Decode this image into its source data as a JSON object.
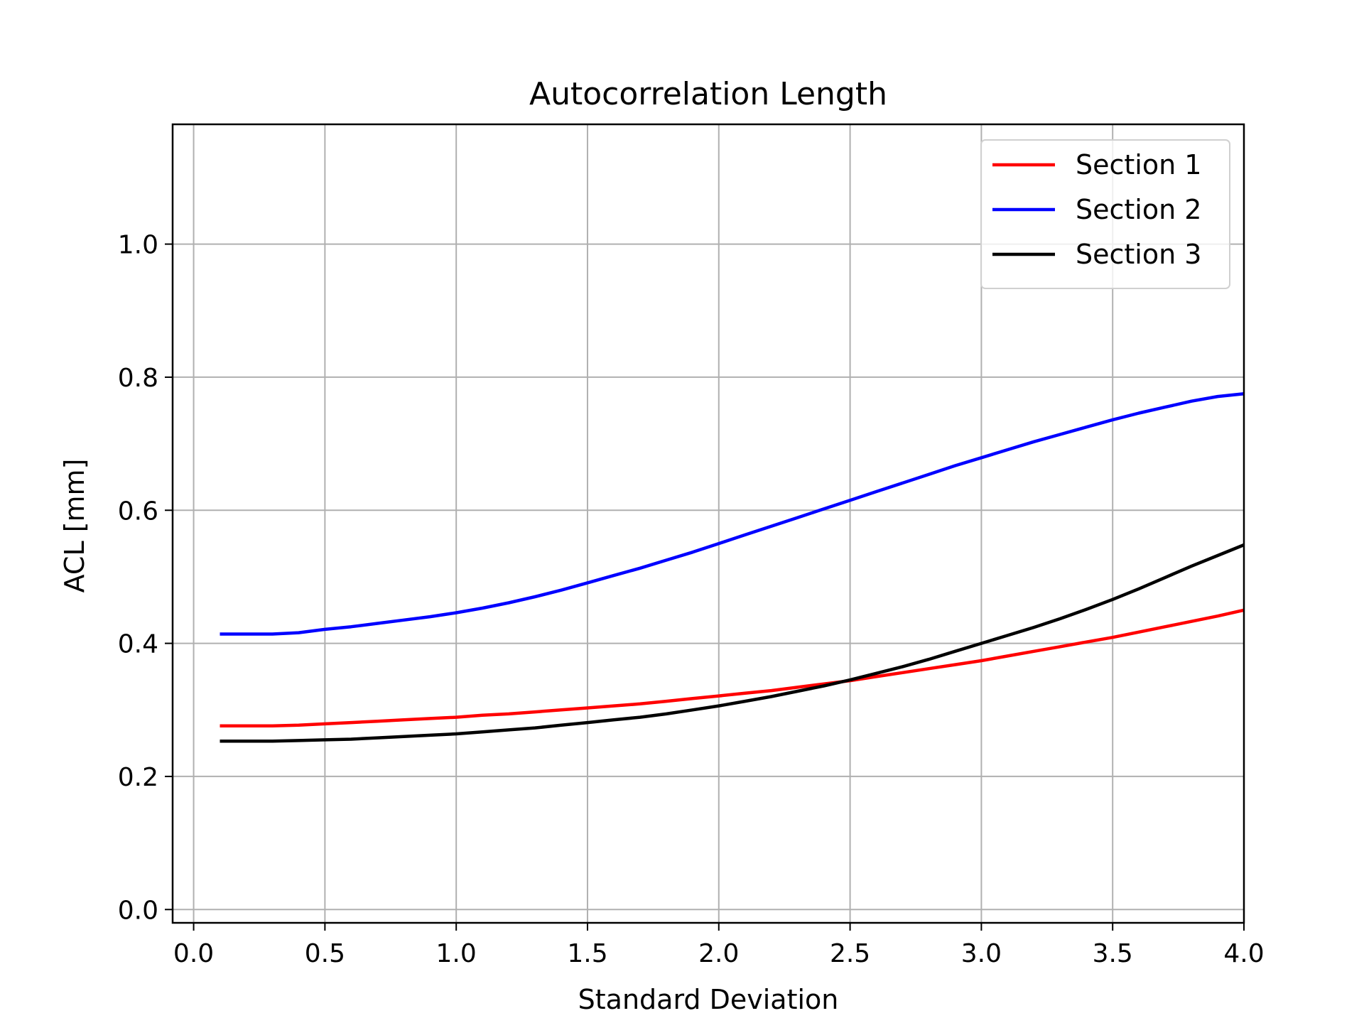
{
  "chart_data": {
    "type": "line",
    "title": "Autocorrelation Length",
    "xlabel": "Standard Deviation",
    "ylabel": "ACL [mm]",
    "xlim": [
      -0.08,
      4.0
    ],
    "ylim": [
      -0.02,
      1.18
    ],
    "xticks": [
      "0.0",
      "0.5",
      "1.0",
      "1.5",
      "2.0",
      "2.5",
      "3.0",
      "3.5",
      "4.0"
    ],
    "yticks": [
      "0.0",
      "0.2",
      "0.4",
      "0.6",
      "0.8",
      "1.0"
    ],
    "grid": true,
    "legend_position": "top-right",
    "x": [
      0.1,
      0.2,
      0.3,
      0.4,
      0.5,
      0.6,
      0.7,
      0.8,
      0.9,
      1.0,
      1.1,
      1.2,
      1.3,
      1.4,
      1.5,
      1.6,
      1.7,
      1.8,
      1.9,
      2.0,
      2.1,
      2.2,
      2.3,
      2.4,
      2.5,
      2.6,
      2.7,
      2.8,
      2.9,
      3.0,
      3.1,
      3.2,
      3.3,
      3.4,
      3.5,
      3.6,
      3.7,
      3.8,
      3.9,
      4.0
    ],
    "series": [
      {
        "name": "Section 1",
        "color": "#ff0000",
        "values": [
          0.276,
          0.276,
          0.276,
          0.277,
          0.279,
          0.281,
          0.283,
          0.285,
          0.287,
          0.289,
          0.292,
          0.294,
          0.297,
          0.3,
          0.303,
          0.306,
          0.309,
          0.313,
          0.317,
          0.321,
          0.325,
          0.329,
          0.334,
          0.339,
          0.344,
          0.35,
          0.356,
          0.362,
          0.368,
          0.374,
          0.381,
          0.388,
          0.395,
          0.402,
          0.409,
          0.417,
          0.425,
          0.433,
          0.441,
          0.45
        ]
      },
      {
        "name": "Section 2",
        "color": "#0000ff",
        "values": [
          0.414,
          0.414,
          0.414,
          0.416,
          0.421,
          0.425,
          0.43,
          0.435,
          0.44,
          0.446,
          0.453,
          0.461,
          0.47,
          0.48,
          0.491,
          0.502,
          0.513,
          0.525,
          0.537,
          0.55,
          0.563,
          0.576,
          0.589,
          0.602,
          0.615,
          0.628,
          0.641,
          0.654,
          0.667,
          0.679,
          0.691,
          0.703,
          0.714,
          0.725,
          0.736,
          0.746,
          0.755,
          0.764,
          0.771,
          0.775
        ]
      },
      {
        "name": "Section 3",
        "color": "#000000",
        "values": [
          0.253,
          0.253,
          0.253,
          0.254,
          0.255,
          0.256,
          0.258,
          0.26,
          0.262,
          0.264,
          0.267,
          0.27,
          0.273,
          0.277,
          0.281,
          0.285,
          0.289,
          0.294,
          0.3,
          0.306,
          0.313,
          0.32,
          0.328,
          0.336,
          0.345,
          0.355,
          0.365,
          0.376,
          0.388,
          0.4,
          0.412,
          0.424,
          0.437,
          0.451,
          0.466,
          0.482,
          0.499,
          0.516,
          0.532,
          0.548
        ]
      }
    ]
  }
}
